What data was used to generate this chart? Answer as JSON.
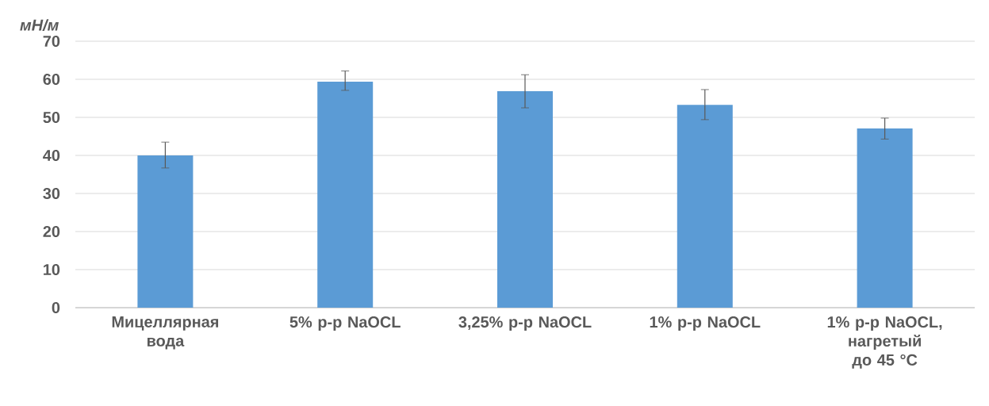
{
  "chart_data": {
    "type": "bar",
    "ylabel": "мН/м",
    "categories": [
      "Мицеллярная вода",
      "5% р-р NaOCL",
      "3,25% р-р NaOCL",
      "1% р-р NaOCL",
      "1% р-р NaOCL, нагретый до 45 °C"
    ],
    "values": [
      40,
      59.4,
      56.9,
      53.3,
      47.1
    ],
    "errors": [
      [
        36.7,
        43.5
      ],
      [
        57.1,
        62.2
      ],
      [
        52.5,
        61.2
      ],
      [
        49.4,
        57.3
      ],
      [
        44.3,
        49.8
      ]
    ],
    "color": "#5b9bd5",
    "ylim": [
      0,
      70
    ],
    "yticks": [
      0,
      10,
      20,
      30,
      40,
      50,
      60,
      70
    ],
    "grid": "y"
  }
}
